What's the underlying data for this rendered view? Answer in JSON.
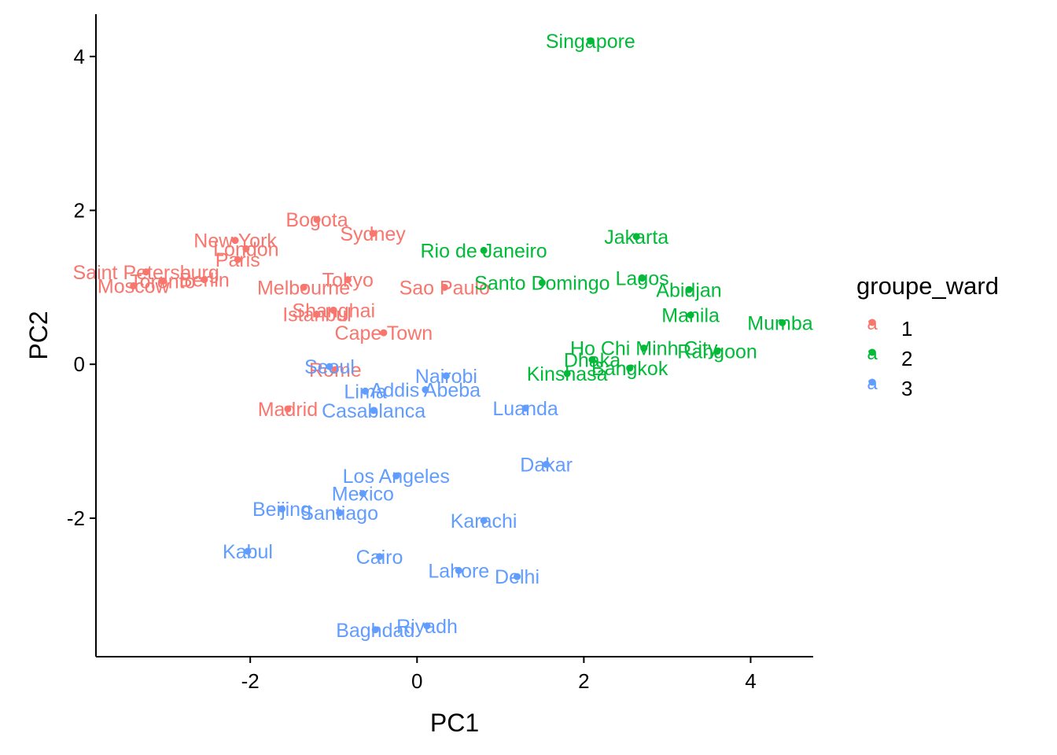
{
  "chart_data": {
    "type": "scatter",
    "xlabel": "PC1",
    "ylabel": "PC2",
    "xlim": [
      -3.85,
      4.75
    ],
    "ylim": [
      -3.8,
      4.55
    ],
    "xticks": [
      -2,
      0,
      2,
      4
    ],
    "yticks": [
      -2,
      0,
      2,
      4
    ],
    "xtick_labels": [
      "-2",
      "0",
      "2",
      "4"
    ],
    "ytick_labels": [
      "-2",
      "0",
      "2",
      "4"
    ],
    "grid": false,
    "legend": {
      "title": "groupe_ward",
      "position": "right",
      "key_glyph": "a",
      "entries": [
        {
          "label": "1",
          "color": "#F8766D"
        },
        {
          "label": "2",
          "color": "#00BA38"
        },
        {
          "label": "3",
          "color": "#619CFF"
        }
      ]
    },
    "groups": [
      {
        "name": "1",
        "color": "#F8766D",
        "points": [
          {
            "label": "Bogota",
            "x": -1.2,
            "y": 1.88
          },
          {
            "label": "Sydney",
            "x": -0.53,
            "y": 1.7
          },
          {
            "label": "New York",
            "x": -2.18,
            "y": 1.61
          },
          {
            "label": "London",
            "x": -2.05,
            "y": 1.5
          },
          {
            "label": "Paris",
            "x": -2.15,
            "y": 1.36
          },
          {
            "label": "Saint Petersburg",
            "x": -3.25,
            "y": 1.2
          },
          {
            "label": "Berlin",
            "x": -2.55,
            "y": 1.1
          },
          {
            "label": "Toronto",
            "x": -3.05,
            "y": 1.08
          },
          {
            "label": "Moscow",
            "x": -3.4,
            "y": 1.02
          },
          {
            "label": "Melbourne",
            "x": -1.36,
            "y": 1.0
          },
          {
            "label": "Tokyo",
            "x": -0.83,
            "y": 1.1
          },
          {
            "label": "Sao Paulo",
            "x": 0.33,
            "y": 1.0
          },
          {
            "label": "Shanghai",
            "x": -1.0,
            "y": 0.7
          },
          {
            "label": "Istanbul",
            "x": -1.2,
            "y": 0.65
          },
          {
            "label": "Cape Town",
            "x": -0.4,
            "y": 0.41
          },
          {
            "label": "Rome",
            "x": -0.98,
            "y": -0.07
          },
          {
            "label": "Madrid",
            "x": -1.55,
            "y": -0.58
          }
        ]
      },
      {
        "name": "2",
        "color": "#00BA38",
        "points": [
          {
            "label": "Singapore",
            "x": 2.08,
            "y": 4.2
          },
          {
            "label": "Jakarta",
            "x": 2.63,
            "y": 1.66
          },
          {
            "label": "Rio de Janeiro",
            "x": 0.8,
            "y": 1.48
          },
          {
            "label": "Santo Domingo",
            "x": 1.5,
            "y": 1.06
          },
          {
            "label": "Lagos",
            "x": 2.7,
            "y": 1.12
          },
          {
            "label": "Abidjan",
            "x": 3.26,
            "y": 0.97
          },
          {
            "label": "Manila",
            "x": 3.28,
            "y": 0.64
          },
          {
            "label": "Mumbai",
            "x": 4.38,
            "y": 0.54
          },
          {
            "label": "Ho Chi Minh City",
            "x": 2.72,
            "y": 0.21
          },
          {
            "label": "Rangoon",
            "x": 3.6,
            "y": 0.17
          },
          {
            "label": "Dhaka",
            "x": 2.1,
            "y": 0.06
          },
          {
            "label": "Bangkok",
            "x": 2.55,
            "y": -0.05
          },
          {
            "label": "Kinshasa",
            "x": 1.8,
            "y": -0.12
          }
        ]
      },
      {
        "name": "3",
        "color": "#619CFF",
        "points": [
          {
            "label": "Seoul",
            "x": -1.05,
            "y": -0.03
          },
          {
            "label": "Nairobi",
            "x": 0.35,
            "y": -0.15
          },
          {
            "label": "Addis Abeba",
            "x": 0.1,
            "y": -0.33
          },
          {
            "label": "Lima",
            "x": -0.62,
            "y": -0.35
          },
          {
            "label": "Casablanca",
            "x": -0.52,
            "y": -0.6
          },
          {
            "label": "Luanda",
            "x": 1.3,
            "y": -0.57
          },
          {
            "label": "Dakar",
            "x": 1.55,
            "y": -1.3
          },
          {
            "label": "Los Angeles",
            "x": -0.25,
            "y": -1.45
          },
          {
            "label": "Mexico",
            "x": -0.65,
            "y": -1.68
          },
          {
            "label": "Beijing",
            "x": -1.62,
            "y": -1.88
          },
          {
            "label": "Santiago",
            "x": -0.93,
            "y": -1.93
          },
          {
            "label": "Karachi",
            "x": 0.8,
            "y": -2.03
          },
          {
            "label": "Kabul",
            "x": -2.03,
            "y": -2.43
          },
          {
            "label": "Cairo",
            "x": -0.45,
            "y": -2.5
          },
          {
            "label": "Lahore",
            "x": 0.5,
            "y": -2.68
          },
          {
            "label": "Delhi",
            "x": 1.2,
            "y": -2.76
          },
          {
            "label": "Riyadh",
            "x": 0.12,
            "y": -3.4
          },
          {
            "label": "Baghdad",
            "x": -0.5,
            "y": -3.45
          }
        ]
      }
    ]
  }
}
